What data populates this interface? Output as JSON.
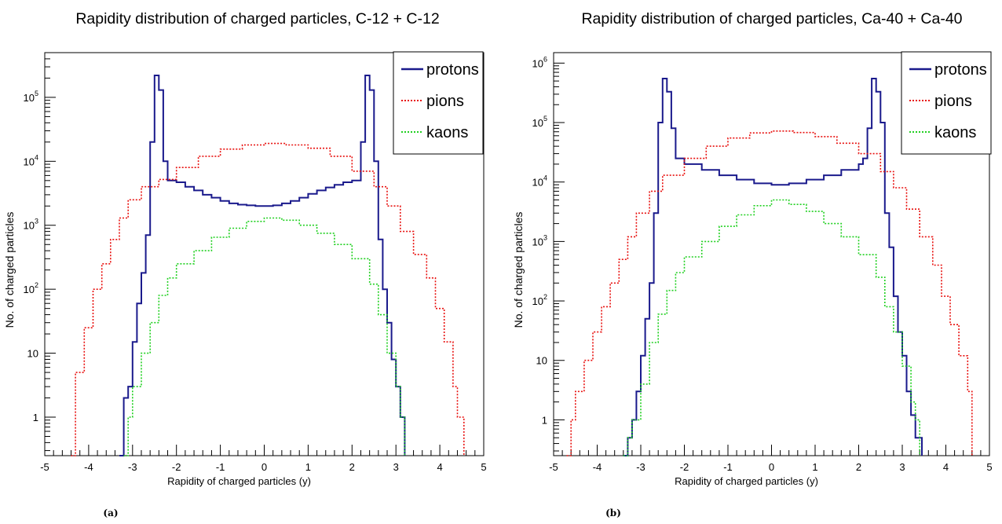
{
  "chart_data": [
    {
      "type": "histogram-step",
      "title": "Rapidity distribution of charged particles, C-12 + C-12",
      "xlabel": "Rapidity of charged particles (y)",
      "ylabel": "No. of charged particles",
      "caption": "(a)",
      "xlim": [
        -5,
        5
      ],
      "ylim": [
        0.25,
        500000
      ],
      "yscale": "log",
      "grid": false,
      "legend_position": "top-right",
      "x_ticks": [
        "-5",
        "-4",
        "-3",
        "-2",
        "-1",
        "0",
        "1",
        "2",
        "3",
        "4",
        "5"
      ],
      "y_ticks": [
        {
          "value": 1,
          "label": "1"
        },
        {
          "value": 10,
          "label": "10"
        },
        {
          "value": 100,
          "label": "10",
          "exp": "2"
        },
        {
          "value": 1000,
          "label": "10",
          "exp": "3"
        },
        {
          "value": 10000,
          "label": "10",
          "exp": "4"
        },
        {
          "value": 100000,
          "label": "10",
          "exp": "5"
        }
      ],
      "series": [
        {
          "name": "protons",
          "color": "#1a1a8c",
          "style": "solid",
          "points": [
            [
              -3.3,
              0.25
            ],
            [
              -3.2,
              2
            ],
            [
              -3.1,
              3
            ],
            [
              -3.0,
              15
            ],
            [
              -2.9,
              60
            ],
            [
              -2.8,
              180
            ],
            [
              -2.7,
              700
            ],
            [
              -2.6,
              20000
            ],
            [
              -2.5,
              220000
            ],
            [
              -2.4,
              130000
            ],
            [
              -2.3,
              10000
            ],
            [
              -2.2,
              5000
            ],
            [
              -2.0,
              4700
            ],
            [
              -1.8,
              4000
            ],
            [
              -1.6,
              3500
            ],
            [
              -1.4,
              3000
            ],
            [
              -1.2,
              2700
            ],
            [
              -1.0,
              2400
            ],
            [
              -0.8,
              2200
            ],
            [
              -0.6,
              2100
            ],
            [
              -0.4,
              2050
            ],
            [
              -0.2,
              2000
            ],
            [
              0.0,
              2000
            ],
            [
              0.2,
              2050
            ],
            [
              0.4,
              2200
            ],
            [
              0.6,
              2400
            ],
            [
              0.8,
              2700
            ],
            [
              1.0,
              3100
            ],
            [
              1.2,
              3500
            ],
            [
              1.4,
              3900
            ],
            [
              1.6,
              4300
            ],
            [
              1.8,
              4700
            ],
            [
              2.0,
              5000
            ],
            [
              2.2,
              20000
            ],
            [
              2.3,
              220000
            ],
            [
              2.4,
              130000
            ],
            [
              2.5,
              10000
            ],
            [
              2.6,
              600
            ],
            [
              2.7,
              100
            ],
            [
              2.8,
              30
            ],
            [
              2.9,
              8
            ],
            [
              3.0,
              3
            ],
            [
              3.1,
              1
            ],
            [
              3.2,
              0.25
            ]
          ]
        },
        {
          "name": "pions",
          "color": "#e8110f",
          "style": "dotted",
          "points": [
            [
              -4.4,
              0.25
            ],
            [
              -4.3,
              5
            ],
            [
              -4.1,
              25
            ],
            [
              -3.9,
              100
            ],
            [
              -3.7,
              250
            ],
            [
              -3.5,
              600
            ],
            [
              -3.3,
              1300
            ],
            [
              -3.1,
              2500
            ],
            [
              -2.8,
              4000
            ],
            [
              -2.4,
              5200
            ],
            [
              -2.0,
              8000
            ],
            [
              -1.5,
              12000
            ],
            [
              -1.0,
              15500
            ],
            [
              -0.5,
              18000
            ],
            [
              0.0,
              19000
            ],
            [
              0.5,
              18000
            ],
            [
              1.0,
              16000
            ],
            [
              1.5,
              12000
            ],
            [
              2.0,
              7000
            ],
            [
              2.5,
              4000
            ],
            [
              2.8,
              2000
            ],
            [
              3.1,
              800
            ],
            [
              3.4,
              350
            ],
            [
              3.7,
              150
            ],
            [
              3.9,
              50
            ],
            [
              4.1,
              15
            ],
            [
              4.3,
              3
            ],
            [
              4.4,
              1
            ],
            [
              4.55,
              0.25
            ]
          ]
        },
        {
          "name": "kaons",
          "color": "#20d020",
          "style": "dotted",
          "points": [
            [
              -3.2,
              0.25
            ],
            [
              -3.1,
              1
            ],
            [
              -3.0,
              3
            ],
            [
              -2.8,
              10
            ],
            [
              -2.6,
              30
            ],
            [
              -2.4,
              80
            ],
            [
              -2.2,
              150
            ],
            [
              -2.0,
              250
            ],
            [
              -1.6,
              400
            ],
            [
              -1.2,
              650
            ],
            [
              -0.8,
              900
            ],
            [
              -0.4,
              1150
            ],
            [
              0.0,
              1300
            ],
            [
              0.4,
              1200
            ],
            [
              0.8,
              1000
            ],
            [
              1.2,
              750
            ],
            [
              1.6,
              500
            ],
            [
              2.0,
              300
            ],
            [
              2.4,
              120
            ],
            [
              2.6,
              40
            ],
            [
              2.8,
              10
            ],
            [
              3.0,
              3
            ],
            [
              3.1,
              1
            ],
            [
              3.2,
              0.25
            ]
          ]
        }
      ]
    },
    {
      "type": "histogram-step",
      "title": "Rapidity distribution of charged particles, Ca-40 + Ca-40",
      "xlabel": "Rapidity of charged particles (y)",
      "ylabel": "No. of charged particles",
      "caption": "(b)",
      "xlim": [
        -5,
        5
      ],
      "ylim": [
        0.25,
        1500000
      ],
      "yscale": "log",
      "grid": false,
      "legend_position": "top-right",
      "x_ticks": [
        "-5",
        "-4",
        "-3",
        "-2",
        "-1",
        "0",
        "1",
        "2",
        "3",
        "4",
        "5"
      ],
      "y_ticks": [
        {
          "value": 1,
          "label": "1"
        },
        {
          "value": 10,
          "label": "10"
        },
        {
          "value": 100,
          "label": "10",
          "exp": "2"
        },
        {
          "value": 1000,
          "label": "10",
          "exp": "3"
        },
        {
          "value": 10000,
          "label": "10",
          "exp": "4"
        },
        {
          "value": 100000,
          "label": "10",
          "exp": "5"
        },
        {
          "value": 1000000,
          "label": "10",
          "exp": "6"
        }
      ],
      "series": [
        {
          "name": "protons",
          "color": "#1a1a8c",
          "style": "solid",
          "points": [
            [
              -3.4,
              0.25
            ],
            [
              -3.3,
              0.5
            ],
            [
              -3.2,
              1
            ],
            [
              -3.1,
              3
            ],
            [
              -3.0,
              12
            ],
            [
              -2.9,
              50
            ],
            [
              -2.8,
              200
            ],
            [
              -2.7,
              3000
            ],
            [
              -2.6,
              100000
            ],
            [
              -2.5,
              550000
            ],
            [
              -2.4,
              330000
            ],
            [
              -2.3,
              80000
            ],
            [
              -2.2,
              25000
            ],
            [
              -2.0,
              20000
            ],
            [
              -1.6,
              16000
            ],
            [
              -1.2,
              13000
            ],
            [
              -0.8,
              11000
            ],
            [
              -0.4,
              9500
            ],
            [
              0.0,
              9000
            ],
            [
              0.4,
              9500
            ],
            [
              0.8,
              11000
            ],
            [
              1.2,
              13000
            ],
            [
              1.6,
              16000
            ],
            [
              2.0,
              20000
            ],
            [
              2.1,
              25000
            ],
            [
              2.2,
              80000
            ],
            [
              2.3,
              550000
            ],
            [
              2.4,
              330000
            ],
            [
              2.5,
              100000
            ],
            [
              2.6,
              3000
            ],
            [
              2.7,
              800
            ],
            [
              2.8,
              120
            ],
            [
              2.9,
              30
            ],
            [
              3.0,
              12
            ],
            [
              3.1,
              3
            ],
            [
              3.2,
              1.2
            ],
            [
              3.3,
              0.5
            ],
            [
              3.45,
              0.25
            ]
          ]
        },
        {
          "name": "pions",
          "color": "#e8110f",
          "style": "dotted",
          "points": [
            [
              -4.7,
              0.25
            ],
            [
              -4.6,
              1
            ],
            [
              -4.5,
              3
            ],
            [
              -4.3,
              10
            ],
            [
              -4.1,
              30
            ],
            [
              -3.9,
              80
            ],
            [
              -3.7,
              200
            ],
            [
              -3.5,
              500
            ],
            [
              -3.3,
              1200
            ],
            [
              -3.1,
              3000
            ],
            [
              -2.8,
              7000
            ],
            [
              -2.5,
              13000
            ],
            [
              -2.0,
              25000
            ],
            [
              -1.5,
              40000
            ],
            [
              -1.0,
              55000
            ],
            [
              -0.5,
              67000
            ],
            [
              0.0,
              72000
            ],
            [
              0.5,
              68000
            ],
            [
              1.0,
              58000
            ],
            [
              1.5,
              45000
            ],
            [
              2.0,
              30000
            ],
            [
              2.5,
              15000
            ],
            [
              2.8,
              8000
            ],
            [
              3.1,
              3500
            ],
            [
              3.4,
              1200
            ],
            [
              3.7,
              400
            ],
            [
              3.9,
              120
            ],
            [
              4.1,
              40
            ],
            [
              4.3,
              12
            ],
            [
              4.5,
              3
            ],
            [
              4.6,
              0.25
            ]
          ]
        },
        {
          "name": "kaons",
          "color": "#20d020",
          "style": "dotted",
          "points": [
            [
              -3.4,
              0.25
            ],
            [
              -3.3,
              0.5
            ],
            [
              -3.2,
              1
            ],
            [
              -3.0,
              4
            ],
            [
              -2.8,
              20
            ],
            [
              -2.6,
              60
            ],
            [
              -2.4,
              150
            ],
            [
              -2.2,
              300
            ],
            [
              -2.0,
              550
            ],
            [
              -1.6,
              1000
            ],
            [
              -1.2,
              1800
            ],
            [
              -0.8,
              2800
            ],
            [
              -0.4,
              4000
            ],
            [
              0.0,
              5000
            ],
            [
              0.4,
              4200
            ],
            [
              0.8,
              3200
            ],
            [
              1.2,
              2000
            ],
            [
              1.6,
              1200
            ],
            [
              2.0,
              600
            ],
            [
              2.4,
              250
            ],
            [
              2.6,
              80
            ],
            [
              2.8,
              30
            ],
            [
              3.0,
              8
            ],
            [
              3.2,
              2
            ],
            [
              3.3,
              1
            ],
            [
              3.4,
              0.25
            ]
          ]
        }
      ]
    }
  ]
}
